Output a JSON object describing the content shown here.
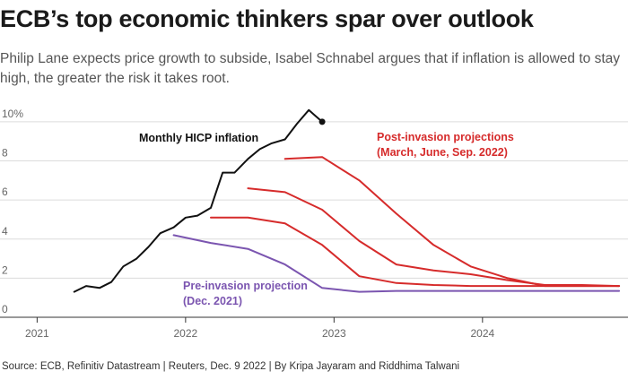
{
  "header": {
    "title": "ECB’s top economic thinkers spar over outlook",
    "subtitle": "Philip Lane expects price growth to subside, Isabel Schnabel argues that if inflation is allowed to stay high, the greater the risk it takes root."
  },
  "footer": {
    "source": "Source: ECB, Refinitiv Datastream | Reuters, Dec. 9 2022 | By Kripa Jayaram and Riddhima Talwani"
  },
  "colors": {
    "hicp": "#111111",
    "post_invasion": "#d62b2b",
    "pre_invasion": "#7b55b0",
    "grid": "#dcdcdc",
    "axis": "#333333"
  },
  "chart_data": {
    "type": "line",
    "title": "ECB’s top economic thinkers spar over outlook",
    "xlabel": "",
    "ylabel": "",
    "xlim": [
      2020.75,
      2024.98
    ],
    "ylim": [
      0,
      10.5
    ],
    "grid": true,
    "y_ticks": [
      {
        "value": 0,
        "label": "0"
      },
      {
        "value": 2,
        "label": "2"
      },
      {
        "value": 4,
        "label": "4"
      },
      {
        "value": 6,
        "label": "6"
      },
      {
        "value": 8,
        "label": "8"
      },
      {
        "value": 10,
        "label": "10%"
      }
    ],
    "x_ticks": [
      {
        "value": 2021,
        "label": "2021"
      },
      {
        "value": 2022,
        "label": "2022"
      },
      {
        "value": 2023,
        "label": "2023"
      },
      {
        "value": 2024,
        "label": "2024"
      }
    ],
    "series": [
      {
        "name": "Monthly HICP inflation",
        "group": "hicp",
        "end_marker": true,
        "points": [
          [
            2021.25,
            1.3
          ],
          [
            2021.33,
            1.6
          ],
          [
            2021.42,
            1.5
          ],
          [
            2021.5,
            1.8
          ],
          [
            2021.58,
            2.6
          ],
          [
            2021.67,
            3.0
          ],
          [
            2021.75,
            3.6
          ],
          [
            2021.83,
            4.3
          ],
          [
            2021.92,
            4.6
          ],
          [
            2022.0,
            5.1
          ],
          [
            2022.08,
            5.2
          ],
          [
            2022.17,
            5.6
          ],
          [
            2022.25,
            7.4
          ],
          [
            2022.33,
            7.4
          ],
          [
            2022.42,
            8.1
          ],
          [
            2022.5,
            8.6
          ],
          [
            2022.58,
            8.9
          ],
          [
            2022.67,
            9.1
          ],
          [
            2022.75,
            9.9
          ],
          [
            2022.83,
            10.6
          ],
          [
            2022.92,
            10.0
          ]
        ]
      },
      {
        "name": "Post-invasion projection (Sep. 2022)",
        "group": "post",
        "points": [
          [
            2022.67,
            8.1
          ],
          [
            2022.92,
            8.2
          ],
          [
            2023.17,
            7.0
          ],
          [
            2023.42,
            5.3
          ],
          [
            2023.67,
            3.7
          ],
          [
            2023.92,
            2.6
          ],
          [
            2024.17,
            2.0
          ],
          [
            2024.42,
            1.6
          ],
          [
            2024.67,
            1.6
          ],
          [
            2024.92,
            1.6
          ]
        ]
      },
      {
        "name": "Post-invasion projection (June 2022)",
        "group": "post",
        "points": [
          [
            2022.42,
            6.6
          ],
          [
            2022.67,
            6.4
          ],
          [
            2022.92,
            5.5
          ],
          [
            2023.17,
            3.9
          ],
          [
            2023.42,
            2.7
          ],
          [
            2023.67,
            2.4
          ],
          [
            2023.92,
            2.2
          ],
          [
            2024.17,
            1.9
          ],
          [
            2024.42,
            1.65
          ],
          [
            2024.67,
            1.65
          ],
          [
            2024.92,
            1.6
          ]
        ]
      },
      {
        "name": "Post-invasion projection (March 2022)",
        "group": "post",
        "points": [
          [
            2022.17,
            5.1
          ],
          [
            2022.42,
            5.1
          ],
          [
            2022.67,
            4.8
          ],
          [
            2022.92,
            3.7
          ],
          [
            2023.17,
            2.1
          ],
          [
            2023.42,
            1.75
          ],
          [
            2023.67,
            1.65
          ],
          [
            2023.92,
            1.6
          ],
          [
            2024.17,
            1.6
          ],
          [
            2024.42,
            1.6
          ],
          [
            2024.67,
            1.6
          ],
          [
            2024.92,
            1.6
          ]
        ]
      },
      {
        "name": "Pre-invasion projection (Dec. 2021)",
        "group": "pre",
        "points": [
          [
            2021.92,
            4.2
          ],
          [
            2022.17,
            3.8
          ],
          [
            2022.42,
            3.5
          ],
          [
            2022.67,
            2.7
          ],
          [
            2022.92,
            1.5
          ],
          [
            2023.17,
            1.3
          ],
          [
            2023.42,
            1.35
          ],
          [
            2023.67,
            1.35
          ],
          [
            2023.92,
            1.35
          ],
          [
            2024.17,
            1.35
          ],
          [
            2024.42,
            1.35
          ],
          [
            2024.67,
            1.35
          ],
          [
            2024.92,
            1.35
          ]
        ]
      }
    ],
    "annotations": [
      {
        "name": "hicp-label",
        "lines": [
          "Monthly HICP inflation"
        ],
        "group": "hicp"
      },
      {
        "name": "post-invasion-label",
        "lines": [
          "Post-invasion projections",
          "(March, June, Sep. 2022)"
        ],
        "group": "post"
      },
      {
        "name": "pre-invasion-label",
        "lines": [
          "Pre-invasion projection",
          "(Dec. 2021)"
        ],
        "group": "pre"
      }
    ]
  }
}
